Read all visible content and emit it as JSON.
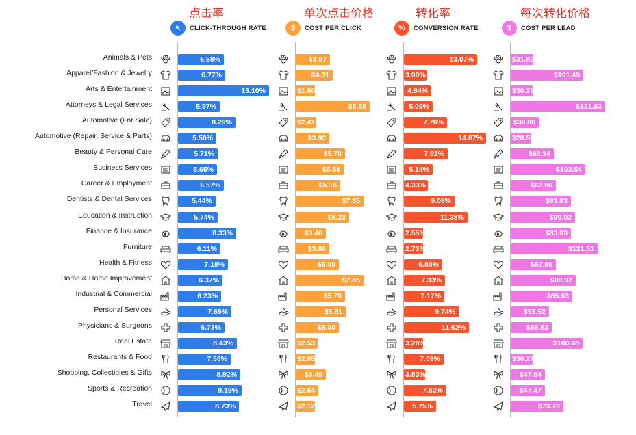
{
  "columns": [
    {
      "cn_title": "点击率",
      "header": "CLICK-THROUGH RATE",
      "icon": "cursor-click-icon",
      "color": "#2e7de8"
    },
    {
      "cn_title": "单次点击价格",
      "header": "COST PER CLICK",
      "icon": "money-hand-icon",
      "color": "#fca23c"
    },
    {
      "cn_title": "转化率",
      "header": "CONVERSION RATE",
      "icon": "percent-icon",
      "color": "#f5542d"
    },
    {
      "cn_title": "每次转化价格",
      "header": "COST PER LEAD",
      "icon": "people-money-icon",
      "color": "#ef77e3"
    }
  ],
  "chart_data": {
    "type": "bar",
    "orientation": "horizontal",
    "categories": [
      "Animals & Pets",
      "Apparel/Fashion & Jewelry",
      "Arts & Entertainment",
      "Attorneys & Legal Services",
      "Automotive (For Sale)",
      "Automotive (Repair, Service & Parts)",
      "Beauty & Personal Care",
      "Business Services",
      "Career & Employment",
      "Dentists & Dental Services",
      "Education & Instruction",
      "Finance & Insurance",
      "Furniture",
      "Health & Fitness",
      "Home & Home Improvement",
      "Industrial & Commercial",
      "Personal Services",
      "Physicians & Surgeons",
      "Real Estate",
      "Restaurants & Food",
      "Shopping, Collectibles & Gifts",
      "Sports & Recreation",
      "Travel"
    ],
    "icons": [
      "paw-icon",
      "tshirt-icon",
      "picture-frame-icon",
      "gavel-icon",
      "car-tag-icon",
      "car-icon",
      "brush-icon",
      "document-icon",
      "briefcase-icon",
      "tooth-icon",
      "graduation-cap-icon",
      "piggy-bank-icon",
      "sofa-icon",
      "heart-icon",
      "house-icon",
      "factory-icon",
      "hand-icon",
      "medical-cross-icon",
      "storefront-icon",
      "fork-knife-icon",
      "gift-bow-icon",
      "ball-icon",
      "airplane-icon"
    ],
    "series": [
      {
        "name": "CLICK-THROUGH RATE",
        "values": [
          6.58,
          6.77,
          13.1,
          5.97,
          8.29,
          5.56,
          5.71,
          5.65,
          6.57,
          5.44,
          5.74,
          8.33,
          6.11,
          7.18,
          6.37,
          6.23,
          7.69,
          6.73,
          8.43,
          7.58,
          8.92,
          9.19,
          8.73
        ],
        "labels": [
          "6.58%",
          "6.77%",
          "13.10%",
          "5.97%",
          "8.29%",
          "5.56%",
          "5.71%",
          "5.65%",
          "6.57%",
          "5.44%",
          "5.74%",
          "8.33%",
          "6.11%",
          "7.18%",
          "6.37%",
          "6.23%",
          "7.69%",
          "6.73%",
          "8.43%",
          "7.58%",
          "8.92%",
          "9.19%",
          "8.73%"
        ],
        "max": 13.1
      },
      {
        "name": "COST PER CLICK",
        "values": [
          3.97,
          4.31,
          1.6,
          8.58,
          2.41,
          3.9,
          5.7,
          5.58,
          5.16,
          7.85,
          6.23,
          3.46,
          3.86,
          5.0,
          7.85,
          5.7,
          5.81,
          5.0,
          2.53,
          2.05,
          3.49,
          2.64,
          2.12
        ],
        "labels": [
          "$3.97",
          "$4.31",
          "$1.60",
          "$8.58",
          "$2.41",
          "$3.90",
          "$5.70",
          "$5.58",
          "$5.16",
          "$7.85",
          "$6.23",
          "$3.46",
          "$3.86",
          "$5.00",
          "$7.85",
          "$5.70",
          "$5.81",
          "$5.00",
          "$2.53",
          "$2.05",
          "$3.49",
          "$2.64",
          "$2.12"
        ],
        "max": 8.58
      },
      {
        "name": "CONVERSION RATE",
        "values": [
          13.07,
          3.99,
          4.84,
          5.09,
          7.76,
          14.67,
          7.82,
          5.14,
          4.33,
          9.08,
          11.38,
          2.55,
          2.73,
          6.8,
          7.33,
          7.17,
          9.74,
          11.62,
          3.28,
          7.09,
          3.83,
          7.62,
          5.75
        ],
        "labels": [
          "13.07%",
          "3.99%",
          "4.84%",
          "5.09%",
          "7.76%",
          "14.67%",
          "7.82%",
          "5.14%",
          "4.33%",
          "9.08%",
          "11.38%",
          "2.55%",
          "2.73%",
          "6.80%",
          "7.33%",
          "7.17%",
          "9.74%",
          "11.62%",
          "3.28%",
          "7.09%",
          "3.83%",
          "7.62%",
          "5.75%"
        ],
        "max": 14.67
      },
      {
        "name": "COST PER LEAD",
        "values": [
          31.82,
          101.49,
          30.27,
          131.63,
          38.86,
          28.5,
          60.34,
          103.54,
          62.8,
          83.93,
          90.02,
          83.93,
          121.51,
          62.8,
          90.92,
          85.63,
          53.52,
          56.83,
          100.48,
          30.27,
          47.94,
          47.47,
          73.7
        ],
        "labels": [
          "$31.82",
          "$101.49",
          "$30.27",
          "$131.63",
          "$38.86",
          "$28.50",
          "$60.34",
          "$103.54",
          "$62.80",
          "$83.93",
          "$90.02",
          "$83.93",
          "$121.51",
          "$62.80",
          "$90.92",
          "$85.63",
          "$53.52",
          "$56.83",
          "$100.48",
          "$30.27",
          "$47.94",
          "$47.47",
          "$73.70"
        ],
        "max": 131.63
      }
    ]
  }
}
